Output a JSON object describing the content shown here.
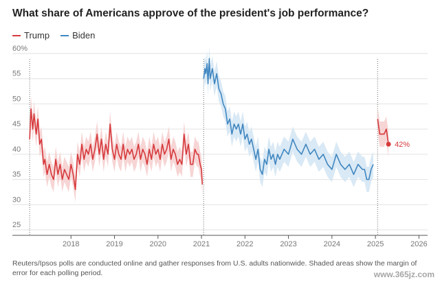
{
  "title": "What share of Americans approve of the president's job performance?",
  "note": "Reuters/Ipsos polls are conducted online and gather responses from U.S. adults nationwide. Shaded areas show the margin of error for each polling period.",
  "watermark": "www.365jz.com",
  "colors": {
    "trump": "#d6383b",
    "biden": "#3f86c0",
    "trump_band": "#f5caca",
    "biden_band": "#cfe3f3",
    "grid": "#e2e2e2",
    "axis": "#555555"
  },
  "chart_data": {
    "type": "line",
    "title": "What share of Americans approve of the president's job performance?",
    "xlabel": "",
    "ylabel": "",
    "ylim": [
      25,
      60
    ],
    "xlim": [
      2017.0,
      2026.2
    ],
    "grid": true,
    "legend_position": "top-left",
    "yticks": [
      25,
      30,
      35,
      40,
      45,
      50,
      55,
      60
    ],
    "ytick_labels": [
      "25",
      "30",
      "35",
      "40",
      "45",
      "50",
      "55",
      "60%"
    ],
    "xticks": [
      2018,
      2019,
      2020,
      2021,
      2022,
      2023,
      2024,
      2025,
      2026
    ],
    "xtick_labels": [
      "2018",
      "2019",
      "2020",
      "2021",
      "2022",
      "2023",
      "2024",
      "2025",
      "2026"
    ],
    "margin_of_error": 2.5,
    "end_label": "42%",
    "series": [
      {
        "name": "Trump",
        "color": "#d6383b",
        "points": [
          [
            2017.05,
            43
          ],
          [
            2017.08,
            49
          ],
          [
            2017.12,
            45
          ],
          [
            2017.15,
            48
          ],
          [
            2017.2,
            44
          ],
          [
            2017.24,
            47
          ],
          [
            2017.28,
            42
          ],
          [
            2017.32,
            43
          ],
          [
            2017.37,
            38
          ],
          [
            2017.4,
            39
          ],
          [
            2017.45,
            36
          ],
          [
            2017.5,
            38
          ],
          [
            2017.55,
            36
          ],
          [
            2017.6,
            35
          ],
          [
            2017.65,
            39
          ],
          [
            2017.7,
            36
          ],
          [
            2017.75,
            38
          ],
          [
            2017.8,
            35
          ],
          [
            2017.85,
            37
          ],
          [
            2017.9,
            36
          ],
          [
            2017.95,
            35
          ],
          [
            2018.0,
            38
          ],
          [
            2018.05,
            36
          ],
          [
            2018.1,
            33
          ],
          [
            2018.15,
            40
          ],
          [
            2018.2,
            38
          ],
          [
            2018.25,
            42
          ],
          [
            2018.3,
            39
          ],
          [
            2018.35,
            41
          ],
          [
            2018.4,
            40
          ],
          [
            2018.45,
            42
          ],
          [
            2018.5,
            39
          ],
          [
            2018.55,
            41
          ],
          [
            2018.6,
            44
          ],
          [
            2018.65,
            40
          ],
          [
            2018.7,
            43
          ],
          [
            2018.75,
            39
          ],
          [
            2018.8,
            42
          ],
          [
            2018.85,
            40
          ],
          [
            2018.9,
            46
          ],
          [
            2018.95,
            41
          ],
          [
            2019.0,
            39
          ],
          [
            2019.05,
            42
          ],
          [
            2019.1,
            40
          ],
          [
            2019.15,
            39
          ],
          [
            2019.2,
            42
          ],
          [
            2019.25,
            39
          ],
          [
            2019.3,
            41
          ],
          [
            2019.35,
            40
          ],
          [
            2019.4,
            41
          ],
          [
            2019.45,
            39
          ],
          [
            2019.5,
            40
          ],
          [
            2019.55,
            42
          ],
          [
            2019.6,
            39
          ],
          [
            2019.65,
            41
          ],
          [
            2019.7,
            40
          ],
          [
            2019.75,
            38
          ],
          [
            2019.8,
            41
          ],
          [
            2019.85,
            39
          ],
          [
            2019.9,
            42
          ],
          [
            2019.95,
            40
          ],
          [
            2020.0,
            41
          ],
          [
            2020.05,
            39
          ],
          [
            2020.1,
            42
          ],
          [
            2020.15,
            40
          ],
          [
            2020.2,
            41
          ],
          [
            2020.25,
            43
          ],
          [
            2020.3,
            39
          ],
          [
            2020.35,
            41
          ],
          [
            2020.4,
            40
          ],
          [
            2020.45,
            38
          ],
          [
            2020.5,
            39
          ],
          [
            2020.55,
            38
          ],
          [
            2020.6,
            44
          ],
          [
            2020.65,
            40
          ],
          [
            2020.7,
            42
          ],
          [
            2020.75,
            38
          ],
          [
            2020.8,
            38
          ],
          [
            2020.85,
            41
          ],
          [
            2020.9,
            40
          ],
          [
            2020.93,
            40
          ],
          [
            2020.97,
            38
          ],
          [
            2021.0,
            37
          ],
          [
            2021.02,
            34
          ]
        ]
      },
      {
        "name": "Biden",
        "color": "#3f86c0",
        "points": [
          [
            2021.05,
            55
          ],
          [
            2021.08,
            57
          ],
          [
            2021.1,
            56
          ],
          [
            2021.13,
            58
          ],
          [
            2021.15,
            54
          ],
          [
            2021.18,
            59
          ],
          [
            2021.2,
            55
          ],
          [
            2021.25,
            57
          ],
          [
            2021.3,
            54
          ],
          [
            2021.35,
            56
          ],
          [
            2021.4,
            53
          ],
          [
            2021.45,
            52
          ],
          [
            2021.5,
            50
          ],
          [
            2021.55,
            49
          ],
          [
            2021.6,
            46
          ],
          [
            2021.65,
            47
          ],
          [
            2021.7,
            44
          ],
          [
            2021.75,
            46
          ],
          [
            2021.8,
            45
          ],
          [
            2021.85,
            46
          ],
          [
            2021.9,
            44
          ],
          [
            2021.95,
            46
          ],
          [
            2022.0,
            43
          ],
          [
            2022.05,
            44
          ],
          [
            2022.1,
            42
          ],
          [
            2022.15,
            43
          ],
          [
            2022.2,
            41
          ],
          [
            2022.25,
            39
          ],
          [
            2022.3,
            41
          ],
          [
            2022.35,
            37
          ],
          [
            2022.4,
            36
          ],
          [
            2022.45,
            39
          ],
          [
            2022.5,
            38
          ],
          [
            2022.55,
            41
          ],
          [
            2022.6,
            39
          ],
          [
            2022.65,
            40
          ],
          [
            2022.7,
            38
          ],
          [
            2022.75,
            40
          ],
          [
            2022.8,
            39
          ],
          [
            2022.9,
            41
          ],
          [
            2023.0,
            40
          ],
          [
            2023.1,
            43
          ],
          [
            2023.2,
            41
          ],
          [
            2023.3,
            40
          ],
          [
            2023.4,
            42
          ],
          [
            2023.5,
            40
          ],
          [
            2023.6,
            41
          ],
          [
            2023.7,
            39
          ],
          [
            2023.8,
            40
          ],
          [
            2023.9,
            38
          ],
          [
            2024.0,
            37
          ],
          [
            2024.1,
            40
          ],
          [
            2024.2,
            38
          ],
          [
            2024.3,
            37
          ],
          [
            2024.4,
            38
          ],
          [
            2024.5,
            36
          ],
          [
            2024.6,
            38
          ],
          [
            2024.7,
            37
          ],
          [
            2024.75,
            37
          ],
          [
            2024.8,
            35
          ],
          [
            2024.85,
            35
          ],
          [
            2024.9,
            37
          ],
          [
            2024.95,
            38
          ]
        ]
      },
      {
        "name": "Trump",
        "color": "#d6383b",
        "points": [
          [
            2025.05,
            47
          ],
          [
            2025.1,
            44
          ],
          [
            2025.15,
            44
          ],
          [
            2025.2,
            44
          ],
          [
            2025.25,
            45
          ],
          [
            2025.3,
            42
          ]
        ]
      }
    ],
    "inauguration_lines": [
      2017.05,
      2021.05,
      2025.05
    ]
  }
}
